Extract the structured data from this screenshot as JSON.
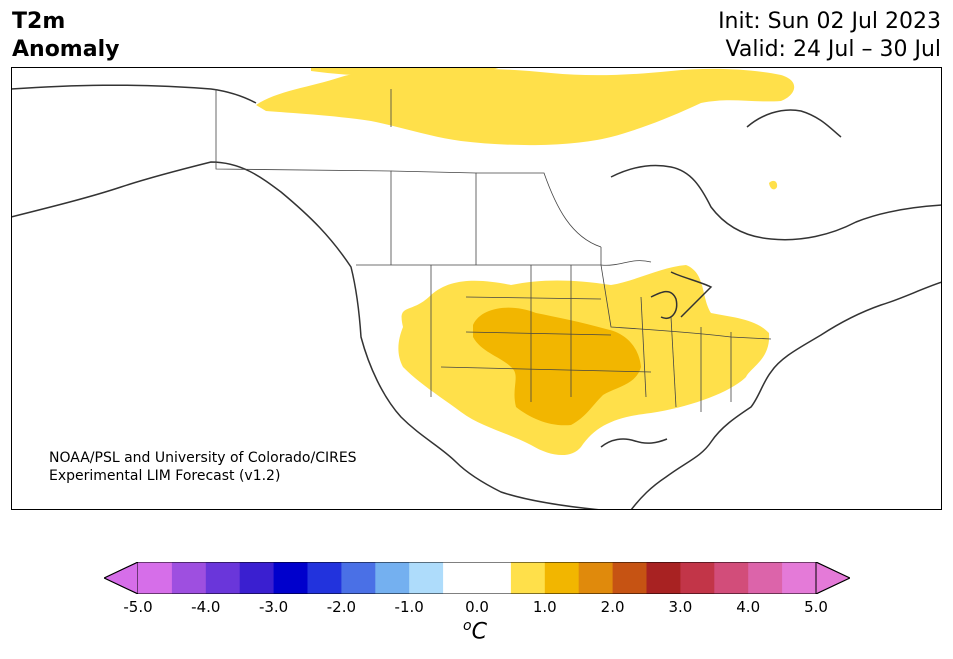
{
  "title": {
    "left_line1": "T2m",
    "left_line2": "Anomaly",
    "init": "Init: Sun 02 Jul 2023",
    "valid": "Valid: 24 Jul – 30 Jul"
  },
  "credit": {
    "line1": "NOAA/PSL and University of Colorado/CIRES",
    "line2": "Experimental LIM Forecast (v1.2)"
  },
  "colorbar": {
    "unit_base": "C",
    "unit_sup": "o",
    "ticks": [
      "-5.0",
      "-4.0",
      "-3.0",
      "-2.0",
      "-1.0",
      "0.0",
      "1.0",
      "2.0",
      "3.0",
      "4.0",
      "5.0"
    ],
    "colors": [
      "#d66ee9",
      "#9e4fe0",
      "#6a36da",
      "#3a1fd0",
      "#0000cc",
      "#2233dd",
      "#4a70e6",
      "#74b0f0",
      "#aedcfb",
      "#ffffff",
      "#ffffff",
      "#ffe04a",
      "#f2b600",
      "#e08a0c",
      "#c65313",
      "#a82222",
      "#c23548",
      "#d24d7a",
      "#dc64aa",
      "#e47ad8"
    ],
    "over_color": "#e47ad8",
    "under_color": "#d66ee9"
  },
  "map": {
    "anomaly_colors": {
      "light": "#ffe04a",
      "dark": "#f2b600"
    }
  }
}
